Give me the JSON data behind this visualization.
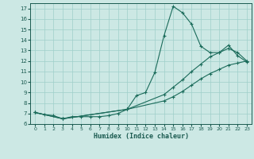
{
  "xlabel": "Humidex (Indice chaleur)",
  "background_color": "#cce8e4",
  "grid_color": "#9fcfca",
  "line_color": "#1a6b5a",
  "xlim": [
    -0.5,
    23.5
  ],
  "ylim": [
    6,
    17.5
  ],
  "yticks": [
    6,
    7,
    8,
    9,
    10,
    11,
    12,
    13,
    14,
    15,
    16,
    17
  ],
  "xticks": [
    0,
    1,
    2,
    3,
    4,
    5,
    6,
    7,
    8,
    9,
    10,
    11,
    12,
    13,
    14,
    15,
    16,
    17,
    18,
    19,
    20,
    21,
    22,
    23
  ],
  "line1_x": [
    0,
    1,
    2,
    3,
    4,
    5,
    6,
    7,
    8,
    9,
    10,
    11,
    12,
    13,
    14,
    15,
    16,
    17,
    18,
    19,
    20,
    21,
    22,
    23
  ],
  "line1_y": [
    7.1,
    6.9,
    6.8,
    6.5,
    6.7,
    6.7,
    6.7,
    6.7,
    6.8,
    7.0,
    7.4,
    8.7,
    9.0,
    10.9,
    14.4,
    17.2,
    16.6,
    15.5,
    13.4,
    12.8,
    12.8,
    13.5,
    12.5,
    11.9
  ],
  "line2_x": [
    0,
    3,
    10,
    14,
    15,
    16,
    17,
    18,
    19,
    20,
    21,
    22,
    23
  ],
  "line2_y": [
    7.1,
    6.5,
    7.4,
    8.8,
    9.5,
    10.2,
    11.0,
    11.7,
    12.4,
    12.8,
    13.2,
    12.8,
    12.0
  ],
  "line3_x": [
    0,
    3,
    10,
    14,
    15,
    16,
    17,
    18,
    19,
    20,
    21,
    22,
    23
  ],
  "line3_y": [
    7.1,
    6.5,
    7.4,
    8.2,
    8.6,
    9.1,
    9.7,
    10.3,
    10.8,
    11.2,
    11.6,
    11.8,
    12.0
  ]
}
